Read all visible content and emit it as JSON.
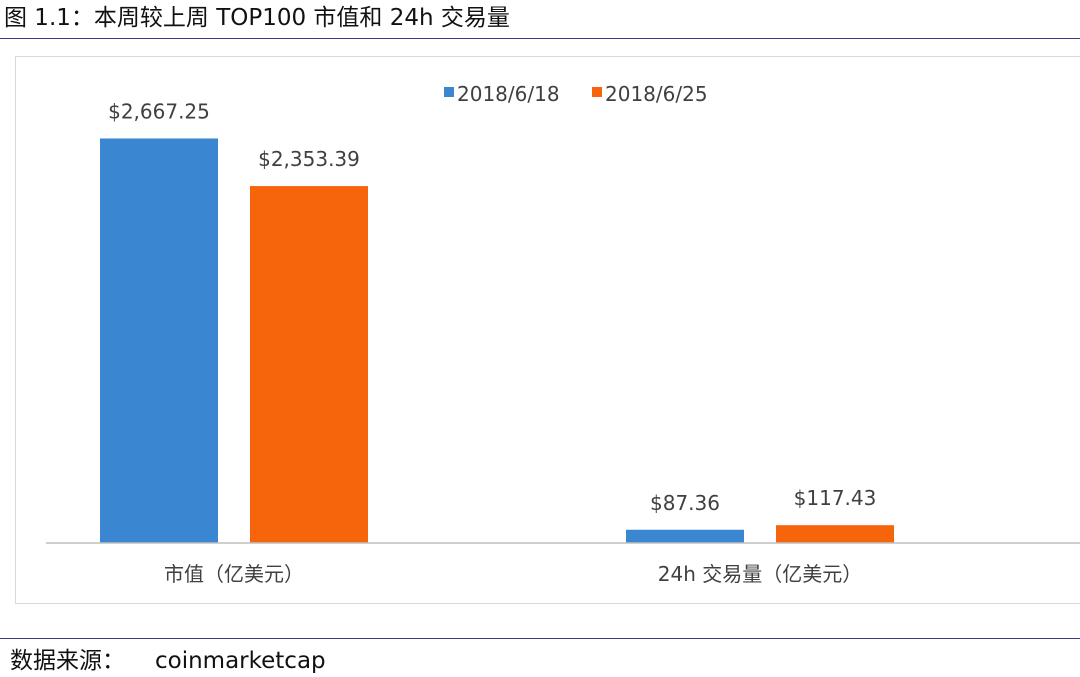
{
  "figure": {
    "title": "图 1.1：本周较上周 TOP100 市值和 24h 交易量",
    "source_label": "数据来源：",
    "source_value": "coinmarketcap"
  },
  "colors": {
    "series_1": "#3a86d1",
    "series_2": "#f6640b",
    "axis": "#bfbfbf",
    "label": "#404040"
  },
  "chart_data": {
    "type": "bar",
    "categories": [
      "市值（亿美元）",
      "24h 交易量（亿美元）"
    ],
    "series": [
      {
        "name": "2018/6/18",
        "values": [
          2667.25,
          87.36
        ],
        "data_labels": [
          "$2,667.25",
          "$87.36"
        ]
      },
      {
        "name": "2018/6/25",
        "values": [
          2353.39,
          117.43
        ],
        "data_labels": [
          "$2,353.39",
          "$117.43"
        ]
      }
    ],
    "ylim": [
      0,
      3000
    ],
    "legend": "top",
    "grid": false
  }
}
